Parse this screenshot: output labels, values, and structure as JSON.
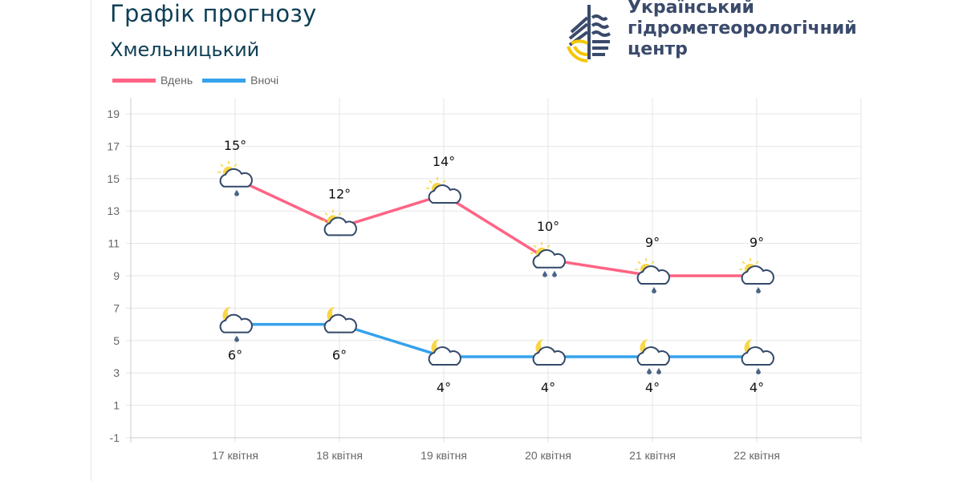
{
  "header": {
    "title": "Графік прогнозу",
    "city": "Хмельницький"
  },
  "logo": {
    "lines": [
      "Український",
      "гідрометеорологічний",
      "центр"
    ],
    "colors": {
      "navy": "#3a4a6b",
      "yellow": "#f7c600"
    }
  },
  "chart_data": {
    "type": "line",
    "categories": [
      "17 квітня",
      "18 квітня",
      "19 квітня",
      "20 квітня",
      "21 квітня",
      "22 квітня"
    ],
    "series": [
      {
        "name": "Вдень",
        "color": "#ff6384",
        "values": [
          15,
          12,
          14,
          10,
          9,
          9
        ],
        "labels": [
          "15°",
          "12°",
          "14°",
          "10°",
          "9°",
          "9°"
        ],
        "icons": [
          "partly-sunny-rain-1",
          "partly-sunny",
          "partly-sunny",
          "partly-sunny-rain-2",
          "partly-sunny-rain-1",
          "partly-sunny-rain-1"
        ]
      },
      {
        "name": "Вночі",
        "color": "#36a2eb",
        "values": [
          6,
          6,
          4,
          4,
          4,
          4
        ],
        "labels": [
          "6°",
          "6°",
          "4°",
          "4°",
          "4°",
          "4°"
        ],
        "icons": [
          "moon-cloud-rain-1",
          "moon-cloud",
          "moon-cloud",
          "moon-cloud",
          "moon-cloud-rain-2",
          "moon-cloud-rain-1"
        ]
      }
    ],
    "yticks": [
      "19",
      "17",
      "15",
      "13",
      "11",
      "9",
      "7",
      "5",
      "3",
      "1",
      "-1"
    ],
    "ylim": [
      -1,
      19
    ],
    "grid": true,
    "legend": "top-left"
  }
}
